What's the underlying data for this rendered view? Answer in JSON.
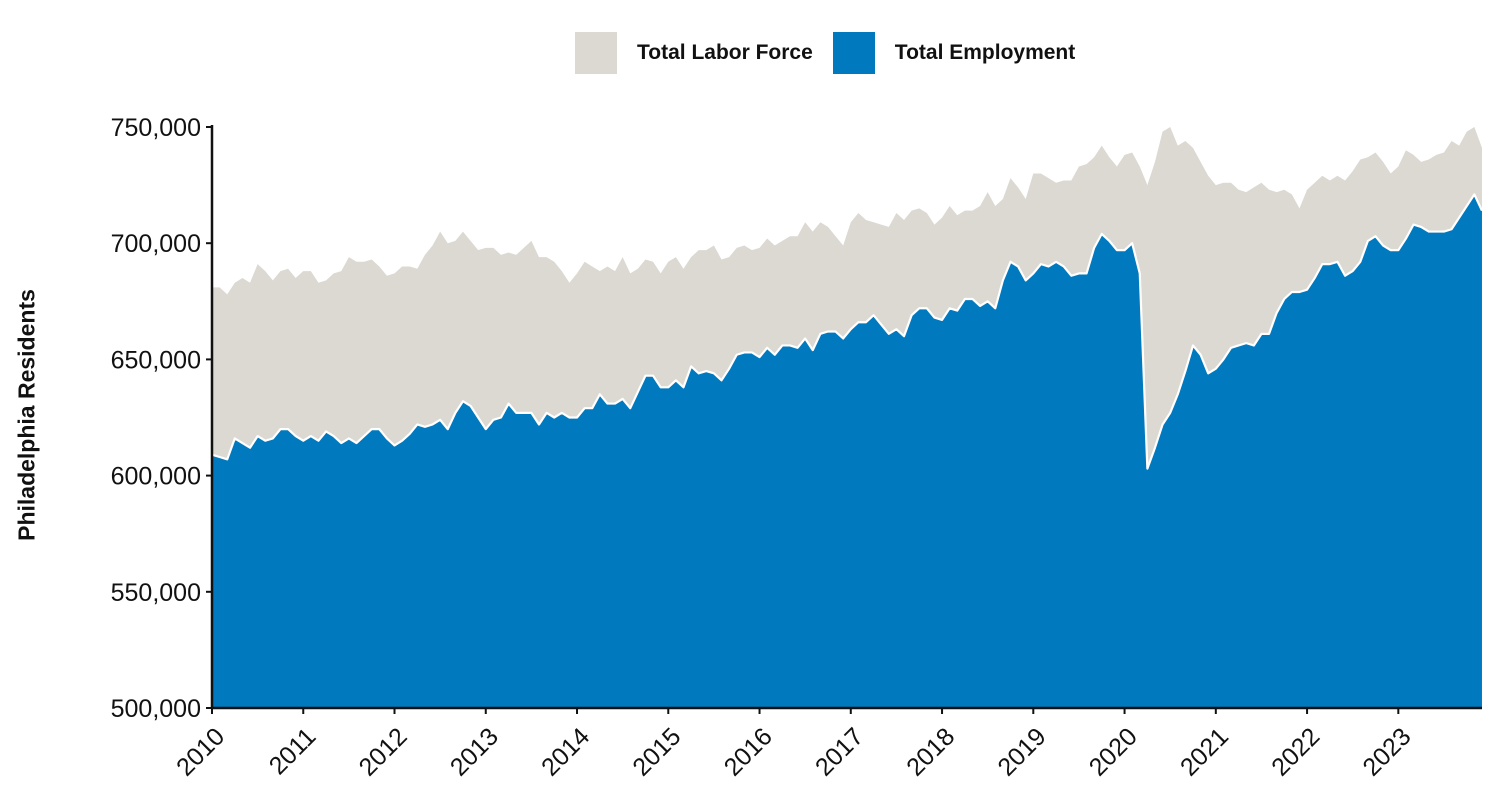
{
  "chart_data": {
    "type": "area",
    "title": "",
    "xlabel": "",
    "ylabel": "Philadelphia Residents",
    "x_start": "2010-01",
    "x_end": "2023-12",
    "frequency": "monthly",
    "xlim": [
      2010.0,
      2023.917
    ],
    "ylim": [
      500000,
      750000
    ],
    "yticks": [
      500000,
      550000,
      600000,
      650000,
      700000,
      750000
    ],
    "ytick_labels": [
      "500,000",
      "550,000",
      "600,000",
      "650,000",
      "700,000",
      "750,000"
    ],
    "xticks": [
      2010,
      2011,
      2012,
      2013,
      2014,
      2015,
      2016,
      2017,
      2018,
      2019,
      2020,
      2021,
      2022,
      2023
    ],
    "xtick_labels": [
      "2010",
      "2011",
      "2012",
      "2013",
      "2014",
      "2015",
      "2016",
      "2017",
      "2018",
      "2019",
      "2020",
      "2021",
      "2022",
      "2023"
    ],
    "legend_position": "top-center",
    "series": [
      {
        "name": "Total Labor Force",
        "color": "#dcd9d3",
        "values": [
          681000,
          681000,
          678000,
          683000,
          685000,
          683000,
          691000,
          688000,
          684000,
          688000,
          689000,
          685000,
          688000,
          688000,
          683000,
          684000,
          687000,
          688000,
          694000,
          692000,
          692000,
          693000,
          690000,
          686000,
          687000,
          690000,
          690000,
          689000,
          695000,
          699000,
          705000,
          700000,
          701000,
          705000,
          701000,
          697000,
          698000,
          698000,
          695000,
          696000,
          695000,
          698000,
          701000,
          694000,
          694000,
          692000,
          688000,
          683000,
          687000,
          692000,
          690000,
          688000,
          690000,
          688000,
          694000,
          687000,
          689000,
          693000,
          692000,
          687000,
          692000,
          694000,
          689000,
          694000,
          697000,
          697000,
          699000,
          693000,
          694000,
          698000,
          699000,
          697000,
          698000,
          702000,
          699000,
          701000,
          703000,
          703000,
          709000,
          705000,
          709000,
          707000,
          703000,
          699000,
          709000,
          713000,
          710000,
          709000,
          708000,
          707000,
          713000,
          710000,
          714000,
          715000,
          713000,
          708000,
          711000,
          716000,
          712000,
          714000,
          714000,
          716000,
          722000,
          716000,
          719000,
          728000,
          724000,
          719000,
          730000,
          730000,
          728000,
          726000,
          727000,
          727000,
          733000,
          734000,
          737000,
          742000,
          737000,
          733000,
          738000,
          739000,
          733000,
          725000,
          735000,
          748000,
          750000,
          742000,
          744000,
          741000,
          735000,
          729000,
          725000,
          726000,
          726000,
          723000,
          722000,
          724000,
          726000,
          723000,
          722000,
          723000,
          721000,
          715000,
          723000,
          726000,
          729000,
          727000,
          729000,
          727000,
          731000,
          736000,
          737000,
          739000,
          735000,
          730000,
          733000,
          740000,
          738000,
          735000,
          736000,
          738000,
          739000,
          744000,
          742000,
          748000,
          750000,
          741000
        ]
      },
      {
        "name": "Total Employment",
        "color": "#0079be",
        "values": [
          609000,
          608000,
          607000,
          616000,
          614000,
          612000,
          617000,
          615000,
          616000,
          620000,
          620000,
          617000,
          615000,
          617000,
          615000,
          619000,
          617000,
          614000,
          616000,
          614000,
          617000,
          620000,
          620000,
          616000,
          613000,
          615000,
          618000,
          622000,
          621000,
          622000,
          624000,
          620000,
          627000,
          632000,
          630000,
          625000,
          620000,
          624000,
          625000,
          631000,
          627000,
          627000,
          627000,
          622000,
          627000,
          625000,
          627000,
          625000,
          625000,
          629000,
          629000,
          635000,
          631000,
          631000,
          633000,
          629000,
          636000,
          643000,
          643000,
          638000,
          638000,
          641000,
          638000,
          647000,
          644000,
          645000,
          644000,
          641000,
          646000,
          652000,
          653000,
          653000,
          651000,
          655000,
          652000,
          656000,
          656000,
          655000,
          659000,
          654000,
          661000,
          662000,
          662000,
          659000,
          663000,
          666000,
          666000,
          669000,
          665000,
          661000,
          663000,
          660000,
          669000,
          672000,
          672000,
          668000,
          667000,
          672000,
          671000,
          676000,
          676000,
          673000,
          675000,
          672000,
          684000,
          692000,
          690000,
          684000,
          687000,
          691000,
          690000,
          692000,
          690000,
          686000,
          687000,
          687000,
          698000,
          704000,
          701000,
          697000,
          697000,
          700000,
          687000,
          603000,
          612000,
          622000,
          627000,
          635000,
          645000,
          656000,
          652000,
          644000,
          646000,
          650000,
          655000,
          656000,
          657000,
          656000,
          661000,
          661000,
          670000,
          676000,
          679000,
          679000,
          680000,
          685000,
          691000,
          691000,
          692000,
          686000,
          688000,
          692000,
          701000,
          703000,
          699000,
          697000,
          697000,
          702000,
          708000,
          707000,
          705000,
          705000,
          705000,
          706000,
          711000,
          716000,
          721000,
          714000
        ]
      }
    ]
  }
}
